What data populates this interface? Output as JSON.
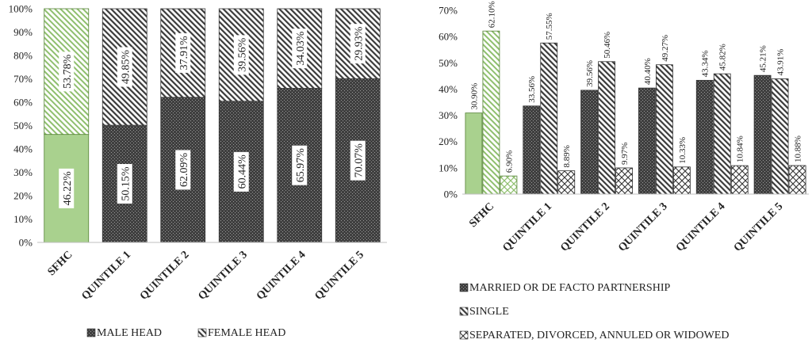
{
  "chart_data": [
    {
      "type": "bar",
      "stacked": true,
      "categories": [
        "SFHC",
        "QUINTILE 1",
        "QUINTILE 2",
        "QUINTILE 3",
        "QUINTILE 4",
        "QUINTILE 5"
      ],
      "series": [
        {
          "name": "MALE HEAD",
          "values": [
            46.22,
            50.15,
            62.09,
            60.44,
            65.97,
            70.07
          ],
          "labels": [
            "46.22%",
            "50.15%",
            "62.09%",
            "60.44%",
            "65.97%",
            "70.07%"
          ]
        },
        {
          "name": "FEMALE HEAD",
          "values": [
            53.78,
            49.85,
            37.91,
            39.56,
            34.03,
            29.93
          ],
          "labels": [
            "53.78%",
            "49.85%",
            "37.91%",
            "39.56%",
            "34.03%",
            "29.93%"
          ]
        }
      ],
      "ylim": [
        0,
        100
      ],
      "yticks": [
        "0%",
        "10%",
        "20%",
        "30%",
        "40%",
        "50%",
        "60%",
        "70%",
        "80%",
        "90%",
        "100%"
      ],
      "grid": false,
      "legend_position": "bottom",
      "highlight_category": "SFHC",
      "colors": {
        "male": "#4a4a4a",
        "female": "#e6e6e6",
        "highlight_fill": "#a9d18e",
        "highlight_stroke": "#548235"
      }
    },
    {
      "type": "bar",
      "stacked": false,
      "categories": [
        "SFHC",
        "QUINTILE 1",
        "QUINTILE 2",
        "QUINTILE 3",
        "QUINTILE 4",
        "QUINTILE 5"
      ],
      "series": [
        {
          "name": "MARRIED OR DE FACTO PARTNERSHIP",
          "values": [
            30.9,
            33.56,
            39.56,
            40.4,
            43.34,
            45.21
          ],
          "labels": [
            "30.90%",
            "33.56%",
            "39.56%",
            "40.40%",
            "43.34%",
            "45.21%"
          ]
        },
        {
          "name": "SINGLE",
          "values": [
            62.1,
            57.55,
            50.46,
            49.27,
            45.82,
            43.91
          ],
          "labels": [
            "62.10%",
            "57.55%",
            "50.46%",
            "49.27%",
            "45.82%",
            "43.91%"
          ]
        },
        {
          "name": "SEPARATED, DIVORCED, ANNULED OR WIDOWED",
          "values": [
            6.9,
            8.89,
            9.97,
            10.33,
            10.84,
            10.88
          ],
          "labels": [
            "6.90%",
            "8.89%",
            "9.97%",
            "10.33%",
            "10.84%",
            "10.88%"
          ]
        }
      ],
      "ylim": [
        0,
        70
      ],
      "yticks": [
        "0%",
        "10%",
        "20%",
        "30%",
        "40%",
        "50%",
        "60%",
        "70%"
      ],
      "grid": false,
      "legend_position": "bottom",
      "highlight_category": "SFHC",
      "colors": {
        "married": "#4a4a4a",
        "single": "#e6e6e6",
        "separated": "#f2f2f2",
        "highlight_fill": "#a9d18e",
        "highlight_stroke": "#548235"
      }
    }
  ]
}
